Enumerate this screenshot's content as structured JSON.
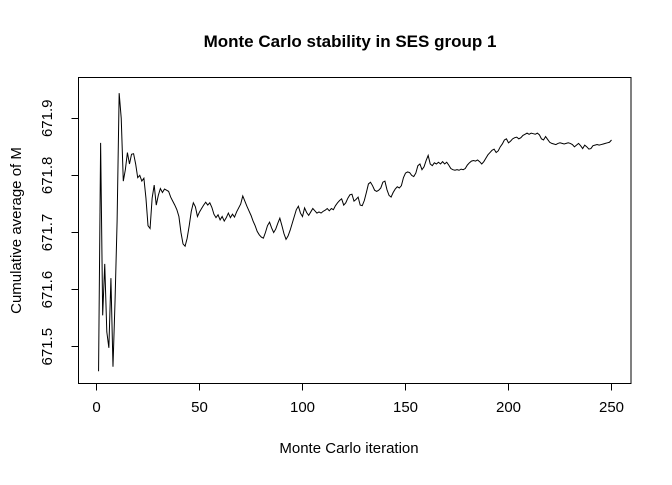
{
  "chart_data": {
    "type": "line",
    "title": "Monte Carlo stability in SES group 1",
    "xlabel": "Monte Carlo iteration",
    "ylabel": "Cumulative average of M",
    "x_ticks": [
      0,
      50,
      100,
      150,
      200,
      250
    ],
    "y_ticks": [
      "671.5",
      "671.6",
      "671.7",
      "671.8",
      "671.9"
    ],
    "xlim": [
      -8.74,
      259.46
    ],
    "ylim": [
      671.4356,
      671.9714
    ],
    "grid": false,
    "legend": "none",
    "line_color": "#000000",
    "background_color": "#ffffff",
    "series": [
      {
        "name": "cumulative-average-of-M",
        "x_start": 1,
        "x_step": 1,
        "values": [
          671.457,
          671.857,
          671.555,
          671.645,
          671.526,
          671.498,
          671.62,
          671.465,
          671.58,
          671.72,
          671.944,
          671.9,
          671.79,
          671.81,
          671.84,
          671.82,
          671.837,
          671.838,
          671.82,
          671.796,
          671.8,
          671.79,
          671.795,
          671.76,
          671.712,
          671.707,
          671.76,
          671.783,
          671.748,
          671.765,
          671.777,
          671.77,
          671.776,
          671.774,
          671.772,
          671.762,
          671.755,
          671.748,
          671.74,
          671.728,
          671.7,
          671.68,
          671.676,
          671.69,
          671.712,
          671.737,
          671.752,
          671.745,
          671.728,
          671.736,
          671.742,
          671.748,
          671.753,
          671.748,
          671.752,
          671.744,
          671.732,
          671.726,
          671.731,
          671.722,
          671.728,
          671.72,
          671.726,
          671.734,
          671.726,
          671.732,
          671.727,
          671.736,
          671.743,
          671.75,
          671.764,
          671.755,
          671.746,
          671.738,
          671.73,
          671.72,
          671.712,
          671.702,
          671.696,
          671.692,
          671.69,
          671.7,
          671.712,
          671.718,
          671.708,
          671.7,
          671.706,
          671.716,
          671.725,
          671.712,
          671.698,
          671.688,
          671.694,
          671.704,
          671.716,
          671.728,
          671.74,
          671.746,
          671.734,
          671.728,
          671.743,
          671.735,
          671.73,
          671.736,
          671.742,
          671.738,
          671.734,
          671.736,
          671.734,
          671.737,
          671.739,
          671.742,
          671.738,
          671.742,
          671.74,
          671.747,
          671.752,
          671.756,
          671.759,
          671.748,
          671.752,
          671.76,
          671.766,
          671.767,
          671.755,
          671.758,
          671.762,
          671.748,
          671.747,
          671.756,
          671.77,
          671.785,
          671.788,
          671.782,
          671.774,
          671.772,
          671.774,
          671.778,
          671.788,
          671.79,
          671.775,
          671.765,
          671.762,
          671.77,
          671.776,
          671.78,
          671.778,
          671.782,
          671.796,
          671.804,
          671.806,
          671.805,
          671.8,
          671.798,
          671.804,
          671.817,
          671.82,
          671.81,
          671.815,
          671.826,
          671.835,
          671.82,
          671.817,
          671.822,
          671.82,
          671.823,
          671.82,
          671.824,
          671.82,
          671.823,
          671.818,
          671.812,
          671.81,
          671.809,
          671.81,
          671.809,
          671.811,
          671.81,
          671.812,
          671.818,
          671.822,
          671.825,
          671.826,
          671.825,
          671.827,
          671.824,
          671.82,
          671.824,
          671.83,
          671.836,
          671.84,
          671.844,
          671.846,
          671.84,
          671.843,
          671.85,
          671.855,
          671.862,
          671.864,
          671.857,
          671.86,
          671.864,
          671.866,
          671.867,
          671.864,
          671.866,
          671.87,
          671.872,
          671.874,
          671.872,
          671.874,
          671.873,
          671.872,
          671.874,
          671.871,
          671.864,
          671.862,
          671.868,
          671.863,
          671.858,
          671.856,
          671.855,
          671.854,
          671.856,
          671.857,
          671.856,
          671.855,
          671.856,
          671.857,
          671.856,
          671.854,
          671.85,
          671.853,
          671.856,
          671.852,
          671.847,
          671.853,
          671.85,
          671.846,
          671.847,
          671.852,
          671.853,
          671.854,
          671.853,
          671.854,
          671.855,
          671.856,
          671.857,
          671.858,
          671.862
        ]
      }
    ]
  }
}
